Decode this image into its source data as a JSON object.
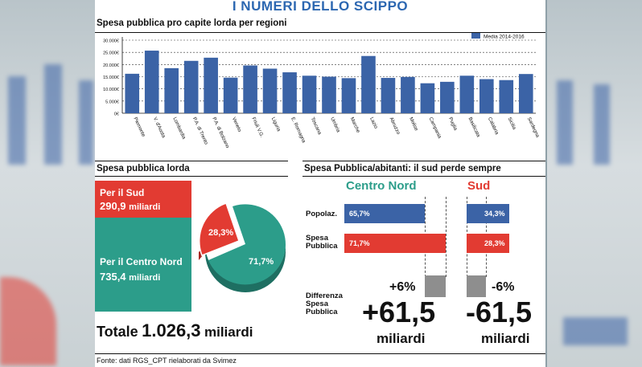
{
  "banner_title": "I NUMERI DELLO SCIPPO",
  "chart1": {
    "title": "Spesa pubblica pro capite lorda per regioni",
    "legend": "Media 2014-2016",
    "bar_color": "#3b63a6"
  },
  "chart_data": [
    {
      "type": "bar",
      "title": "Spesa pubblica pro capite lorda per regioni",
      "categories": [
        "Piemonte",
        "V. d'Aosta",
        "Lombardia",
        "P.A. di Trento",
        "P.A. di Bolzano",
        "Veneto",
        "Friuli V.G.",
        "Liguria",
        "E. Romagna",
        "Toscana",
        "Umbria",
        "Marche",
        "Lazio",
        "Abruzzo",
        "Molise",
        "Campania",
        "Puglia",
        "Basilicata",
        "Calabria",
        "Sicilia",
        "Sardegna"
      ],
      "series": [
        {
          "name": "Media 2014-2016",
          "values": [
            16200,
            25700,
            18500,
            21500,
            22800,
            14600,
            19600,
            18300,
            16800,
            15400,
            15000,
            14400,
            23500,
            14500,
            14900,
            12300,
            12900,
            15400,
            14000,
            13600,
            16100
          ]
        }
      ],
      "yticks": [
        "0€",
        "5.000€",
        "10.000€",
        "15.000€",
        "20.000€",
        "25.000€",
        "30.000€"
      ],
      "ylim": [
        0,
        30000
      ],
      "legend_position": "top-right",
      "grid": true
    },
    {
      "type": "pie",
      "title": "Spesa pubblica lorda",
      "categories": [
        "Per il Sud",
        "Per il Centro Nord"
      ],
      "values": [
        28.3,
        71.7
      ],
      "amounts": [
        "290,9",
        "735,4"
      ],
      "colors": [
        "#e23b32",
        "#2c9d8a"
      ]
    },
    {
      "type": "bar",
      "title": "Spesa Pubblica/abitanti: il sud perde sempre",
      "categories": [
        "Popolaz.",
        "Spesa Pubblica"
      ],
      "series": [
        {
          "name": "Centro Nord",
          "values": [
            65.7,
            71.7
          ]
        },
        {
          "name": "Sud",
          "values": [
            34.3,
            28.3
          ]
        }
      ],
      "difference": {
        "Centro Nord": 6,
        "Sud": -6
      }
    }
  ],
  "left": {
    "title": "Spesa pubblica lorda",
    "sud_label": "Per il Sud",
    "sud_value": "290,9",
    "sud_unit": "miliardi",
    "cn_label": "Per il Centro Nord",
    "cn_value": "735,4",
    "cn_unit": "miliardi",
    "pie_sud_pct": "28,3%",
    "pie_cn_pct": "71,7%",
    "totale_label": "Totale",
    "totale_value": "1.026,3",
    "totale_unit": "miliardi"
  },
  "right": {
    "title": "Spesa Pubblica/abitanti: il sud perde sempre",
    "head_cn": "Centro Nord",
    "head_sud": "Sud",
    "row_pop": "Popolaz.",
    "row_spesa_1": "Spesa",
    "row_spesa_2": "Pubblica",
    "row_diff_1": "Differenza",
    "row_diff_2": "Spesa",
    "row_diff_3": "Pubblica",
    "cn_pop": "65,7%",
    "sud_pop": "34,3%",
    "cn_spesa": "71,7%",
    "sud_spesa": "28,3%",
    "cn_diff": "+6%",
    "sud_diff": "-6%",
    "cn_big": "+61,5",
    "sud_big": "-61,5",
    "cn_unit": "miliardi",
    "sud_unit": "miliardi",
    "blue": "#3b63a6",
    "red": "#e23b32",
    "green": "#2c9d8a"
  },
  "source": "Fonte: dati RGS_CPT rielaborati da Svimez"
}
